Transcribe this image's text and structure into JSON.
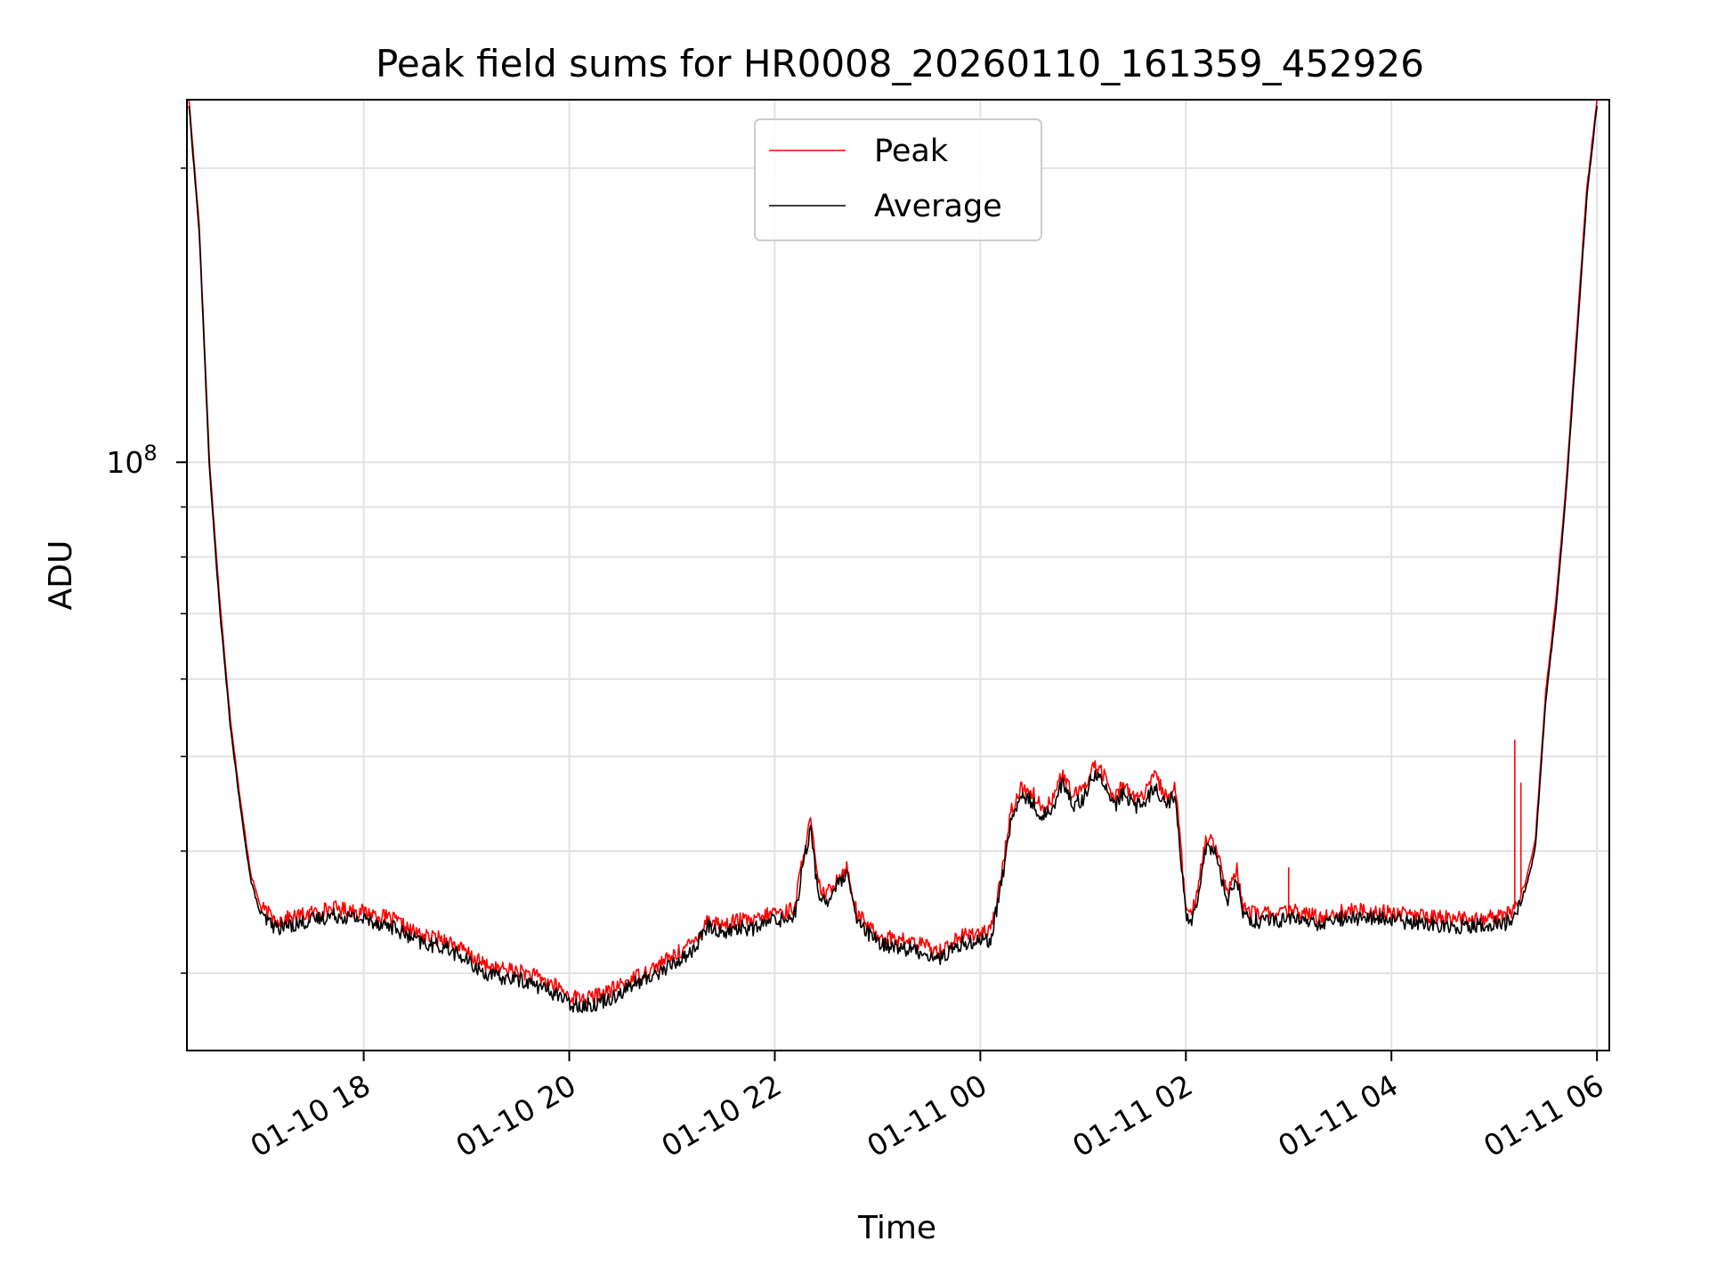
{
  "chart_data": {
    "type": "line",
    "title": "Peak field sums for HR0008_20260110_161359_452926",
    "xlabel": "Time",
    "ylabel": "ADU",
    "yscale": "log",
    "xlim": [
      16.28,
      30.12
    ],
    "ylim": [
      25000000,
      235000000
    ],
    "x_unit": "hours since 2026-01-10 00:00",
    "x_ticks": [
      {
        "value": 18,
        "label": "01-10 18"
      },
      {
        "value": 20,
        "label": "01-10 20"
      },
      {
        "value": 22,
        "label": "01-10 22"
      },
      {
        "value": 24,
        "label": "01-11 00"
      },
      {
        "value": 26,
        "label": "01-11 02"
      },
      {
        "value": 28,
        "label": "01-11 04"
      },
      {
        "value": 30,
        "label": "01-11 06"
      }
    ],
    "y_major_tick": {
      "value": 100000000,
      "base": "10",
      "exp": "8"
    },
    "y_minor_ticks": [
      30000000,
      40000000,
      50000000,
      60000000,
      70000000,
      80000000,
      90000000,
      200000000
    ],
    "grid": true,
    "legend_position": "upper-center",
    "series": [
      {
        "name": "Peak",
        "color": "#ff0000",
        "x": [
          16.3,
          16.4,
          16.5,
          16.6,
          16.7,
          16.8,
          16.9,
          17.0,
          17.15,
          17.3,
          17.5,
          17.7,
          17.9,
          18.1,
          18.3,
          18.45,
          18.6,
          18.8,
          19.0,
          19.15,
          19.3,
          19.5,
          19.7,
          19.9,
          20.0,
          20.2,
          20.4,
          20.6,
          20.8,
          21.0,
          21.2,
          21.35,
          21.5,
          21.65,
          21.8,
          22.0,
          22.1,
          22.2,
          22.28,
          22.35,
          22.42,
          22.5,
          22.6,
          22.7,
          22.8,
          23.0,
          23.2,
          23.4,
          23.6,
          23.8,
          24.0,
          24.1,
          24.2,
          24.3,
          24.4,
          24.5,
          24.6,
          24.7,
          24.8,
          24.9,
          25.0,
          25.1,
          25.2,
          25.3,
          25.4,
          25.5,
          25.6,
          25.7,
          25.8,
          25.9,
          26.0,
          26.05,
          26.1,
          26.2,
          26.3,
          26.4,
          26.5,
          26.55,
          26.7,
          26.9,
          27.1,
          27.3,
          27.5,
          27.7,
          27.9,
          28.1,
          28.3,
          28.5,
          28.7,
          28.9,
          29.1,
          29.2,
          29.3,
          29.4,
          29.5,
          29.6,
          29.7,
          29.8,
          29.9,
          30.0
        ],
        "values": [
          235000000,
          175000000,
          100000000,
          72000000,
          55000000,
          45000000,
          38000000,
          35000000,
          34000000,
          34200000,
          34600000,
          35000000,
          34800000,
          34500000,
          34000000,
          33200000,
          32700000,
          32500000,
          31500000,
          30700000,
          30300000,
          30200000,
          29700000,
          29000000,
          28400000,
          28300000,
          28800000,
          29600000,
          30300000,
          31200000,
          32200000,
          34100000,
          33600000,
          34000000,
          33900000,
          34700000,
          34600000,
          35200000,
          40000000,
          43000000,
          37000000,
          36000000,
          37500000,
          38500000,
          34500000,
          32800000,
          32500000,
          32200000,
          31600000,
          32700000,
          33100000,
          33000000,
          37500000,
          44000000,
          46500000,
          46000000,
          44200000,
          45300000,
          48000000,
          45500000,
          46200000,
          49000000,
          48000000,
          45200000,
          47000000,
          45300000,
          45700000,
          47800000,
          45500000,
          46500000,
          35000000,
          34200000,
          36000000,
          41500000,
          40500000,
          36000000,
          38300000,
          35000000,
          34500000,
          34600000,
          34700000,
          34200000,
          34700000,
          34800000,
          34700000,
          34500000,
          34300000,
          34200000,
          34100000,
          34200000,
          34300000,
          35000000,
          37000000,
          41000000,
          58000000,
          72000000,
          95000000,
          135000000,
          190000000,
          235000000
        ]
      },
      {
        "name": "Average",
        "color": "#000000",
        "x": [
          16.3,
          16.4,
          16.5,
          16.6,
          16.7,
          16.8,
          16.9,
          17.0,
          17.15,
          17.3,
          17.5,
          17.7,
          17.9,
          18.1,
          18.3,
          18.45,
          18.6,
          18.8,
          19.0,
          19.15,
          19.3,
          19.5,
          19.7,
          19.9,
          20.0,
          20.2,
          20.4,
          20.6,
          20.8,
          21.0,
          21.2,
          21.35,
          21.5,
          21.65,
          21.8,
          22.0,
          22.1,
          22.2,
          22.28,
          22.35,
          22.42,
          22.5,
          22.6,
          22.7,
          22.8,
          23.0,
          23.2,
          23.4,
          23.6,
          23.8,
          24.0,
          24.1,
          24.2,
          24.3,
          24.4,
          24.5,
          24.6,
          24.7,
          24.8,
          24.9,
          25.0,
          25.1,
          25.2,
          25.3,
          25.4,
          25.5,
          25.6,
          25.7,
          25.8,
          25.9,
          26.0,
          26.05,
          26.1,
          26.2,
          26.3,
          26.4,
          26.5,
          26.55,
          26.7,
          26.9,
          27.1,
          27.3,
          27.5,
          27.7,
          27.9,
          28.1,
          28.3,
          28.5,
          28.7,
          28.9,
          29.1,
          29.2,
          29.3,
          29.4,
          29.5,
          29.6,
          29.7,
          29.8,
          29.9,
          30.0
        ],
        "values": [
          232000000,
          172000000,
          98000000,
          70500000,
          54000000,
          44300000,
          37400000,
          34300000,
          33400000,
          33600000,
          34000000,
          34400000,
          34200000,
          33900000,
          33400000,
          32600000,
          32100000,
          31900000,
          30900000,
          30100000,
          29700000,
          29600000,
          29100000,
          28500000,
          27900000,
          27800000,
          28300000,
          29100000,
          29800000,
          30600000,
          31600000,
          33500000,
          33000000,
          33400000,
          33300000,
          34100000,
          34000000,
          34600000,
          39200000,
          42000000,
          36300000,
          35400000,
          36800000,
          37800000,
          33900000,
          32200000,
          31900000,
          31600000,
          31000000,
          32100000,
          32500000,
          32400000,
          36800000,
          43000000,
          45500000,
          45000000,
          43300000,
          44400000,
          47000000,
          44600000,
          45300000,
          48000000,
          47000000,
          44300000,
          46000000,
          44400000,
          44800000,
          46800000,
          44600000,
          45600000,
          34400000,
          33600000,
          35400000,
          40700000,
          39700000,
          35400000,
          37600000,
          34400000,
          33900000,
          34000000,
          34100000,
          33600000,
          34100000,
          34200000,
          34100000,
          33900000,
          33700000,
          33600000,
          33500000,
          33600000,
          33700000,
          34400000,
          36300000,
          40200000,
          56800000,
          70500000,
          93000000,
          132000000,
          186000000,
          232000000
        ]
      }
    ],
    "annotations": [
      {
        "series": "Peak",
        "x": 27.0,
        "value": 38500000,
        "note": "spike"
      },
      {
        "series": "Peak",
        "x": 29.2,
        "value": 52000000,
        "note": "spike"
      },
      {
        "series": "Peak",
        "x": 29.26,
        "value": 47000000,
        "note": "spike"
      }
    ]
  }
}
